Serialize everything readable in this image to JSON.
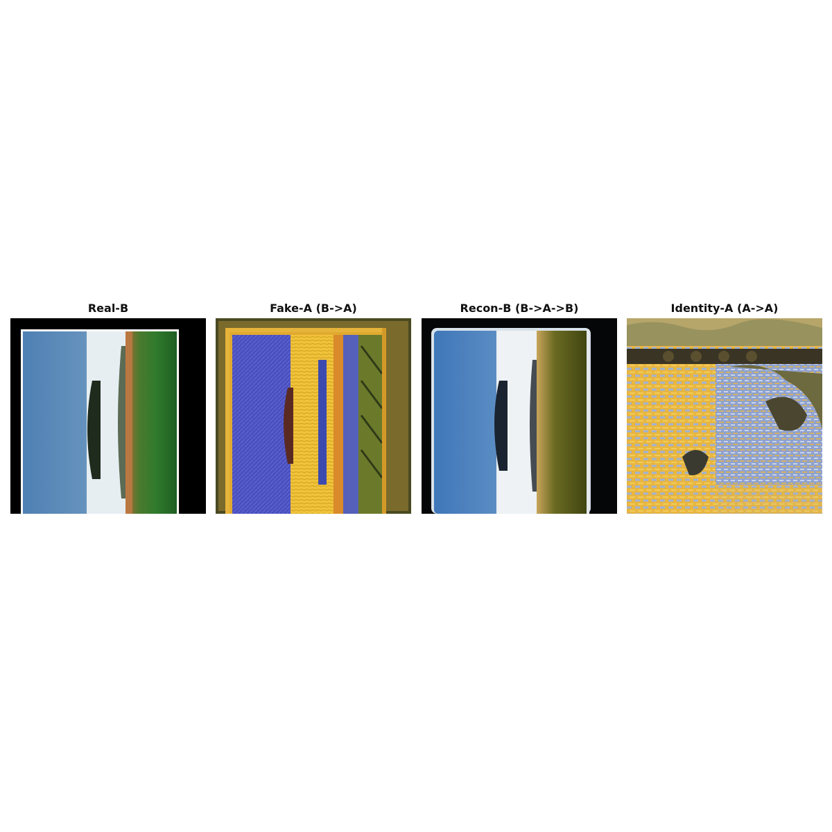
{
  "panels": [
    {
      "title": "Real-B"
    },
    {
      "title": "Fake-A (B->A)"
    },
    {
      "title": "Recon-B (B->A->B)"
    },
    {
      "title": "Identity-A (A->A)"
    }
  ]
}
